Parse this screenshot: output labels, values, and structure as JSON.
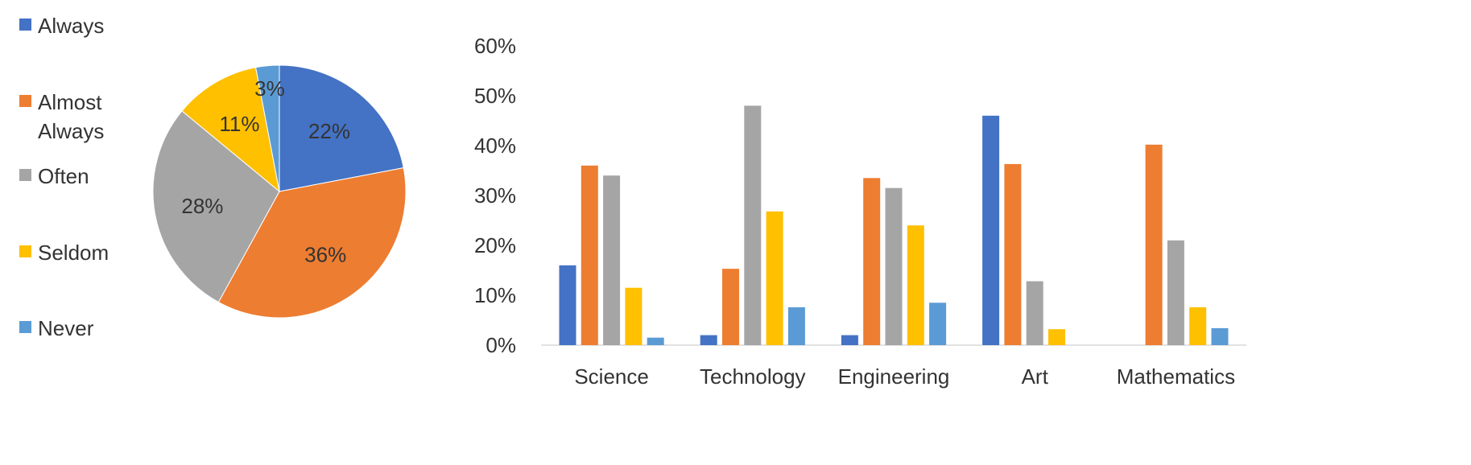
{
  "chart_data": [
    {
      "type": "pie",
      "categories": [
        "Always",
        "Almost Always",
        "Often",
        "Seldom",
        "Never"
      ],
      "values": [
        22,
        36,
        28,
        11,
        3
      ],
      "value_labels": [
        "22%",
        "36%",
        "28%",
        "11%",
        "3%"
      ],
      "legend": {
        "placement": "left",
        "items": [
          {
            "lines": [
              "Always"
            ]
          },
          {
            "lines": [
              "Almost",
              "Always"
            ]
          },
          {
            "lines": [
              "Often"
            ]
          },
          {
            "lines": [
              "Seldom"
            ]
          },
          {
            "lines": [
              "Never"
            ]
          }
        ]
      },
      "colors": [
        "#4472C4",
        "#ED7D31",
        "#A5A5A5",
        "#FFC000",
        "#5B9BD5"
      ]
    },
    {
      "type": "bar",
      "categories": [
        "Science",
        "Technology",
        "Engineering",
        "Art",
        "Mathematics"
      ],
      "series": [
        {
          "values": [
            16,
            2,
            2,
            46,
            0
          ]
        },
        {
          "values": [
            36,
            15.3,
            33.5,
            36.3,
            40.2
          ]
        },
        {
          "values": [
            34,
            48,
            31.5,
            12.8,
            21
          ]
        },
        {
          "values": [
            11.5,
            26.8,
            24,
            3.2,
            7.6
          ]
        },
        {
          "values": [
            1.5,
            7.6,
            8.5,
            0,
            3.4
          ]
        }
      ],
      "colors": [
        "#4472C4",
        "#ED7D31",
        "#A5A5A5",
        "#FFC000",
        "#5B9BD5"
      ],
      "ylim": [
        0,
        60
      ],
      "yticks": [
        "0%",
        "10%",
        "20%",
        "30%",
        "40%",
        "50%",
        "60%"
      ],
      "grid": false
    }
  ]
}
